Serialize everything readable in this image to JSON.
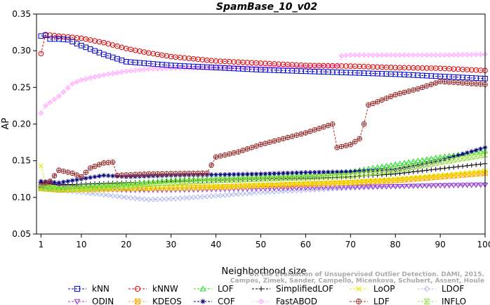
{
  "chart_data": {
    "type": "line",
    "title": "SpamBase_10_v02",
    "xlabel": "Neighborhood size",
    "ylabel": "AP",
    "xlim": [
      0,
      100
    ],
    "ylim": [
      0.05,
      0.35
    ],
    "xticks": [
      1,
      10,
      20,
      30,
      40,
      50,
      60,
      70,
      80,
      90,
      100
    ],
    "yticks": [
      0.05,
      0.1,
      0.15,
      0.2,
      0.25,
      0.3,
      0.35
    ],
    "ytick_labels": [
      "0.05",
      "0.10",
      "0.15",
      "0.20",
      "0.25",
      "0.30",
      "0.35"
    ],
    "grid": false,
    "legend_placement": "bottom",
    "credit": "Campos, Zimek, Sander, Campello, Micenkova, Schubert, Assent, Houle",
    "credit_top": "On the Evaluation of Unsupervised Outlier Detection. DAMI, 2015.",
    "series": [
      {
        "name": "kNN",
        "color": "#0000cc",
        "marker": "square",
        "points": [
          [
            1,
            0.32
          ],
          [
            2,
            0.321
          ],
          [
            3,
            0.316
          ],
          [
            5,
            0.316
          ],
          [
            7,
            0.315
          ],
          [
            10,
            0.307
          ],
          [
            15,
            0.295
          ],
          [
            20,
            0.285
          ],
          [
            30,
            0.28
          ],
          [
            40,
            0.277
          ],
          [
            50,
            0.274
          ],
          [
            60,
            0.272
          ],
          [
            70,
            0.27
          ],
          [
            80,
            0.268
          ],
          [
            90,
            0.265
          ],
          [
            100,
            0.262
          ]
        ]
      },
      {
        "name": "kNNW",
        "color": "#dd0000",
        "marker": "circle",
        "points": [
          [
            1,
            0.296
          ],
          [
            2,
            0.322
          ],
          [
            5,
            0.32
          ],
          [
            10,
            0.317
          ],
          [
            15,
            0.311
          ],
          [
            20,
            0.303
          ],
          [
            25,
            0.297
          ],
          [
            30,
            0.292
          ],
          [
            40,
            0.286
          ],
          [
            50,
            0.283
          ],
          [
            60,
            0.28
          ],
          [
            70,
            0.279
          ],
          [
            80,
            0.277
          ],
          [
            90,
            0.276
          ],
          [
            100,
            0.273
          ]
        ]
      },
      {
        "name": "LOF",
        "color": "#22dd22",
        "marker": "triangle",
        "points": [
          [
            1,
            0.115
          ],
          [
            5,
            0.113
          ],
          [
            10,
            0.115
          ],
          [
            20,
            0.118
          ],
          [
            30,
            0.123
          ],
          [
            40,
            0.126
          ],
          [
            50,
            0.128
          ],
          [
            60,
            0.13
          ],
          [
            70,
            0.135
          ],
          [
            80,
            0.145
          ],
          [
            90,
            0.155
          ],
          [
            100,
            0.163
          ]
        ]
      },
      {
        "name": "SimplifiedLOF",
        "color": "#000000",
        "marker": "plus",
        "points": [
          [
            1,
            0.12
          ],
          [
            5,
            0.117
          ],
          [
            10,
            0.118
          ],
          [
            20,
            0.12
          ],
          [
            30,
            0.122
          ],
          [
            40,
            0.123
          ],
          [
            50,
            0.125
          ],
          [
            60,
            0.126
          ],
          [
            70,
            0.128
          ],
          [
            80,
            0.132
          ],
          [
            90,
            0.139
          ],
          [
            100,
            0.146
          ]
        ]
      },
      {
        "name": "LoOP",
        "color": "#e8e800",
        "marker": "x",
        "points": [
          [
            1,
            0.143
          ],
          [
            2,
            0.12
          ],
          [
            5,
            0.112
          ],
          [
            10,
            0.11
          ],
          [
            20,
            0.112
          ],
          [
            30,
            0.113
          ],
          [
            40,
            0.115
          ],
          [
            50,
            0.117
          ],
          [
            60,
            0.119
          ],
          [
            70,
            0.121
          ],
          [
            80,
            0.125
          ],
          [
            90,
            0.13
          ],
          [
            100,
            0.136
          ]
        ]
      },
      {
        "name": "LDOF",
        "color": "#b0b8ee",
        "marker": "diamond",
        "points": [
          [
            1,
            0.115
          ],
          [
            5,
            0.11
          ],
          [
            10,
            0.107
          ],
          [
            20,
            0.1
          ],
          [
            25,
            0.097
          ],
          [
            30,
            0.098
          ],
          [
            40,
            0.102
          ],
          [
            50,
            0.107
          ],
          [
            60,
            0.11
          ],
          [
            70,
            0.113
          ],
          [
            80,
            0.115
          ],
          [
            90,
            0.117
          ],
          [
            100,
            0.118
          ]
        ]
      },
      {
        "name": "ODIN",
        "color": "#9933cc",
        "marker": "triangle-down",
        "points": [
          [
            1,
            0.118
          ],
          [
            5,
            0.116
          ],
          [
            10,
            0.113
          ],
          [
            20,
            0.11
          ],
          [
            30,
            0.11
          ],
          [
            40,
            0.111
          ],
          [
            50,
            0.112
          ],
          [
            60,
            0.113
          ],
          [
            70,
            0.114
          ],
          [
            80,
            0.115
          ],
          [
            90,
            0.116
          ],
          [
            100,
            0.117
          ]
        ]
      },
      {
        "name": "KDEOS",
        "color": "#ffaa00",
        "marker": "square-x",
        "points": [
          [
            1,
            0.112
          ],
          [
            5,
            0.11
          ],
          [
            10,
            0.111
          ],
          [
            20,
            0.112
          ],
          [
            30,
            0.113
          ],
          [
            40,
            0.114
          ],
          [
            50,
            0.116
          ],
          [
            60,
            0.118
          ],
          [
            70,
            0.12
          ],
          [
            80,
            0.123
          ],
          [
            90,
            0.128
          ],
          [
            100,
            0.133
          ]
        ]
      },
      {
        "name": "COF",
        "color": "#000080",
        "marker": "asterisk",
        "points": [
          [
            1,
            0.122
          ],
          [
            5,
            0.12
          ],
          [
            10,
            0.125
          ],
          [
            15,
            0.13
          ],
          [
            20,
            0.128
          ],
          [
            30,
            0.13
          ],
          [
            40,
            0.131
          ],
          [
            50,
            0.132
          ],
          [
            60,
            0.134
          ],
          [
            70,
            0.135
          ],
          [
            80,
            0.138
          ],
          [
            90,
            0.15
          ],
          [
            100,
            0.168
          ]
        ]
      },
      {
        "name": "FastABOD",
        "color": "#ffb3ff",
        "marker": "diamond-plus",
        "points": [
          [
            1,
            0.215
          ],
          [
            2,
            0.225
          ],
          [
            5,
            0.238
          ],
          [
            8,
            0.255
          ],
          [
            10,
            0.26
          ],
          [
            15,
            0.267
          ],
          [
            20,
            0.272
          ],
          [
            25,
            0.275
          ],
          [
            30,
            0.276
          ],
          [
            40,
            0.277
          ],
          [
            50,
            0.278
          ],
          [
            60,
            0.278
          ],
          [
            67,
            0.279
          ],
          [
            68,
            0.293
          ],
          [
            70,
            0.294
          ],
          [
            80,
            0.294
          ],
          [
            90,
            0.294
          ],
          [
            100,
            0.295
          ]
        ]
      },
      {
        "name": "LDF",
        "color": "#993333",
        "marker": "circle-plus",
        "points": [
          [
            1,
            0.116
          ],
          [
            3,
            0.122
          ],
          [
            5,
            0.137
          ],
          [
            8,
            0.133
          ],
          [
            10,
            0.128
          ],
          [
            12,
            0.14
          ],
          [
            15,
            0.147
          ],
          [
            17,
            0.148
          ],
          [
            18,
            0.13
          ],
          [
            25,
            0.132
          ],
          [
            38,
            0.133
          ],
          [
            40,
            0.155
          ],
          [
            45,
            0.162
          ],
          [
            50,
            0.172
          ],
          [
            55,
            0.18
          ],
          [
            60,
            0.188
          ],
          [
            66,
            0.2
          ],
          [
            67,
            0.168
          ],
          [
            70,
            0.172
          ],
          [
            72,
            0.18
          ],
          [
            73,
            0.2
          ],
          [
            74,
            0.226
          ],
          [
            75,
            0.228
          ],
          [
            80,
            0.24
          ],
          [
            85,
            0.248
          ],
          [
            90,
            0.258
          ],
          [
            95,
            0.256
          ],
          [
            100,
            0.254
          ]
        ]
      },
      {
        "name": "INFLO",
        "color": "#99dd44",
        "marker": "hourglass",
        "points": [
          [
            1,
            0.113
          ],
          [
            5,
            0.111
          ],
          [
            10,
            0.112
          ],
          [
            20,
            0.116
          ],
          [
            30,
            0.12
          ],
          [
            40,
            0.123
          ],
          [
            50,
            0.125
          ],
          [
            60,
            0.127
          ],
          [
            70,
            0.13
          ],
          [
            80,
            0.137
          ],
          [
            90,
            0.148
          ],
          [
            100,
            0.158
          ]
        ]
      }
    ]
  }
}
